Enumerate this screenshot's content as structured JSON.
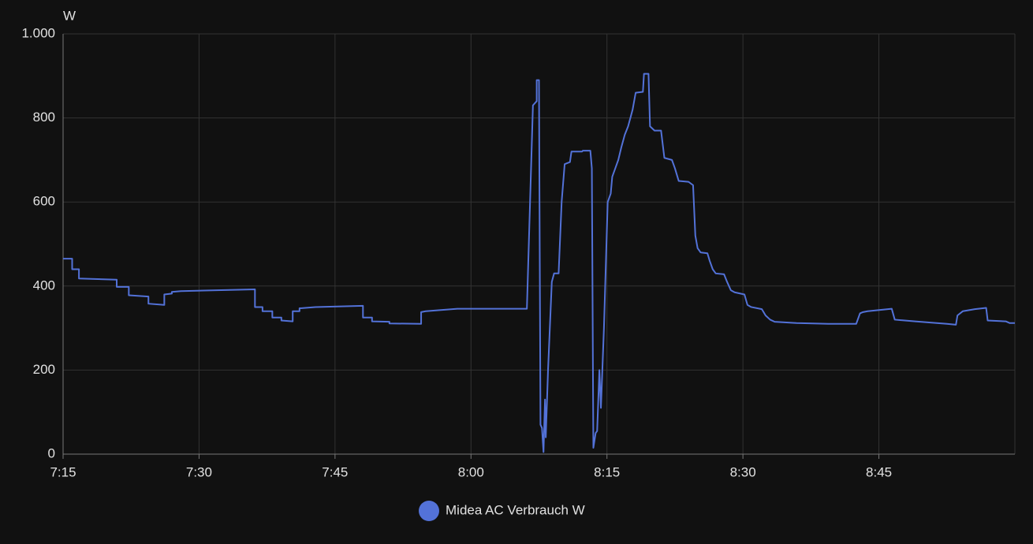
{
  "chart_data": {
    "type": "line",
    "y_axis_label": "W",
    "xlim": [
      "7:15",
      "9:00"
    ],
    "xticks": [
      "7:15",
      "7:30",
      "7:45",
      "8:00",
      "8:15",
      "8:30",
      "8:45"
    ],
    "ylim": [
      0,
      1000
    ],
    "yticks": [
      0,
      200,
      400,
      600,
      800,
      {
        "value": 1000,
        "label": "1.000"
      }
    ],
    "grid": true,
    "legend": "bottom",
    "x": [
      "7:15:00",
      "7:16:00",
      "7:16:00",
      "7:16:45",
      "7:16:45",
      "7:20:55",
      "7:20:55",
      "7:22:15",
      "7:22:15",
      "7:24:25",
      "7:24:25",
      "7:26:10",
      "7:26:10",
      "7:27:00",
      "7:27:00",
      "7:28:00",
      "7:36:10",
      "7:36:10",
      "7:37:00",
      "7:37:00",
      "7:38:05",
      "7:38:05",
      "7:39:05",
      "7:39:05",
      "7:40:20",
      "7:40:20",
      "7:41:05",
      "7:41:05",
      "7:42:50",
      "7:48:05",
      "7:48:05",
      "7:49:05",
      "7:49:05",
      "7:51:00",
      "7:51:00",
      "7:54:30",
      "7:54:30",
      "7:55:00",
      "7:58:30",
      "8:06:10",
      "8:06:50",
      "8:07:15",
      "8:07:15",
      "8:07:30",
      "8:07:40",
      "8:07:50",
      "8:08:00",
      "8:08:10",
      "8:08:15",
      "8:08:30",
      "8:08:55",
      "8:09:10",
      "8:09:40",
      "8:10:00",
      "8:10:20",
      "8:10:55",
      "8:11:05",
      "8:12:15",
      "8:12:20",
      "8:13:10",
      "8:13:20",
      "8:13:30",
      "8:13:45",
      "8:13:55",
      "8:14:10",
      "8:14:20",
      "8:14:40",
      "8:15:05",
      "8:15:25",
      "8:15:35",
      "8:15:55",
      "8:16:15",
      "8:16:35",
      "8:16:58",
      "8:17:20",
      "8:17:50",
      "8:18:10",
      "8:18:58",
      "8:19:05",
      "8:19:35",
      "8:19:45",
      "8:20:15",
      "8:20:58",
      "8:21:20",
      "8:22:10",
      "8:22:30",
      "8:22:55",
      "8:24:00",
      "8:24:30",
      "8:24:45",
      "8:25:00",
      "8:25:20",
      "8:26:05",
      "8:26:20",
      "8:26:40",
      "8:27:00",
      "8:27:55",
      "8:28:15",
      "8:28:40",
      "8:29:05",
      "8:30:10",
      "8:30:30",
      "8:30:55",
      "8:32:05",
      "8:32:30",
      "8:33:00",
      "8:33:30",
      "8:35:55",
      "8:39:25",
      "8:42:30",
      "8:42:55",
      "8:43:15",
      "8:43:45",
      "8:46:25",
      "8:46:45",
      "8:49:00",
      "8:52:30",
      "8:53:30",
      "8:53:40",
      "8:54:15",
      "8:55:35",
      "8:56:50",
      "8:57:00",
      "8:59:00",
      "8:59:25",
      "9:00:00"
    ],
    "series": [
      {
        "name": "Midea AC Verbrauch W",
        "color": "#5372d8",
        "values": [
          465,
          465,
          440,
          440,
          418,
          415,
          398,
          398,
          378,
          375,
          358,
          355,
          380,
          382,
          386,
          388,
          392,
          350,
          350,
          340,
          340,
          325,
          325,
          318,
          316,
          340,
          340,
          347,
          350,
          353,
          325,
          325,
          316,
          315,
          311,
          310,
          338,
          340,
          346,
          346,
          830,
          840,
          890,
          890,
          70,
          62,
          5,
          130,
          40,
          200,
          410,
          430,
          430,
          600,
          690,
          695,
          720,
          720,
          722,
          722,
          680,
          15,
          50,
          55,
          200,
          110,
          300,
          600,
          620,
          660,
          680,
          700,
          730,
          760,
          780,
          820,
          860,
          862,
          905,
          905,
          780,
          770,
          770,
          705,
          700,
          680,
          650,
          648,
          640,
          520,
          490,
          480,
          478,
          460,
          440,
          430,
          428,
          410,
          390,
          385,
          380,
          355,
          350,
          345,
          330,
          320,
          315,
          312,
          310,
          310,
          335,
          338,
          340,
          346,
          320,
          316,
          310,
          308,
          330,
          340,
          345,
          348,
          318,
          316,
          312,
          312
        ]
      }
    ]
  }
}
